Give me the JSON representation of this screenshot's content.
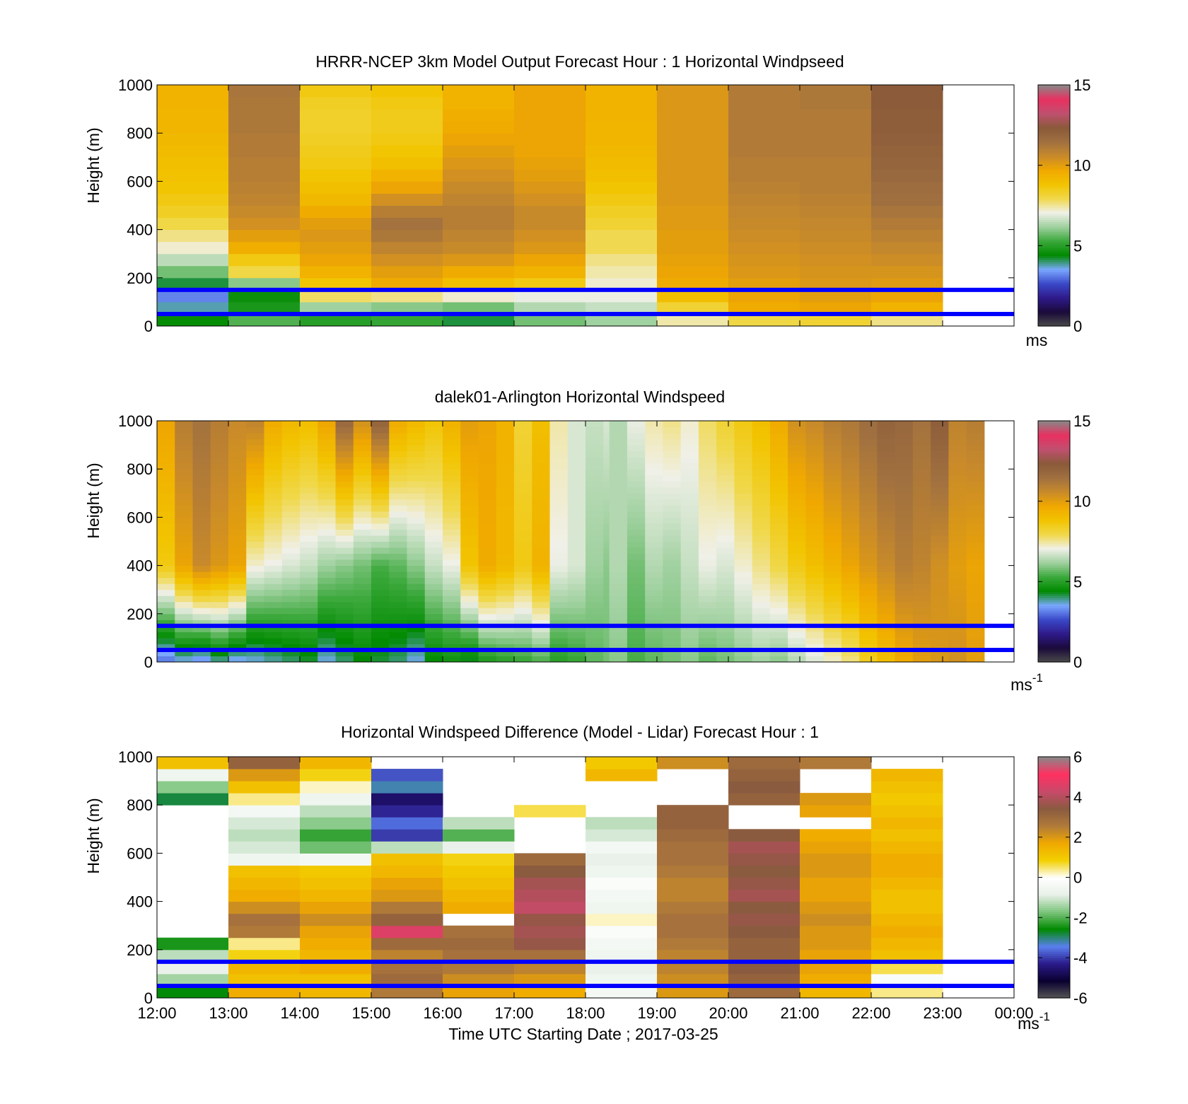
{
  "colors": {
    "speed_scale": [
      "#4b4b4b",
      "#1a0a3a",
      "#2f1a8a",
      "#3a48c8",
      "#7aa8ff",
      "#008a00",
      "#3aa83a",
      "#9ed09e",
      "#f0f0e8",
      "#f0d84a",
      "#f2c400",
      "#f0a800",
      "#c88a2a",
      "#a07040",
      "#8a5a3a",
      "#c05070",
      "#e83060",
      "#888888"
    ],
    "diff_scale": [
      "#555555",
      "#0a0030",
      "#2a1a8a",
      "#5a80f0",
      "#008a00",
      "#7cc47c",
      "#e8f0e8",
      "#ffffff",
      "#f2d000",
      "#f0a800",
      "#b07a3a",
      "#8a5a40",
      "#c84a6a",
      "#ff3060",
      "#888888"
    ],
    "reference_line": "#0000ff"
  },
  "chart_data": [
    {
      "type": "heatmap",
      "title": "HRRR-NCEP 3km Model Output   Forecast Hour : 1 Horizontal Windpseed",
      "ylabel": "Height (m)",
      "xlabel": "",
      "ylim": [
        0,
        1000
      ],
      "yticks": [
        "0",
        "200",
        "400",
        "600",
        "800",
        "1000"
      ],
      "colorbar": {
        "min": 0,
        "max": 15,
        "ticks": [
          "0",
          "5",
          "10",
          "15"
        ],
        "unit": "ms",
        "unit_sup": ""
      },
      "reference_lines_m": [
        50,
        150
      ],
      "x_hours": [
        12,
        13,
        14,
        15,
        16,
        17,
        18,
        19,
        20,
        21,
        22
      ],
      "heights_m": [
        25,
        75,
        125,
        175,
        225,
        275,
        325,
        375,
        425,
        475,
        525,
        575,
        625,
        675,
        725,
        775,
        825,
        875,
        925,
        975
      ],
      "values": [
        [
          4.5,
          3.8,
          3.2,
          4.2,
          5.8,
          6.5,
          7.2,
          7.6,
          8.0,
          8.4,
          8.6,
          8.8,
          8.9,
          9.0,
          9.1,
          9.2,
          9.3,
          9.3,
          9.4,
          9.4
        ],
        [
          5.5,
          4.8,
          4.6,
          6.0,
          8.0,
          8.6,
          9.5,
          10.0,
          10.4,
          10.6,
          10.8,
          10.9,
          11.0,
          11.0,
          11.1,
          11.1,
          11.2,
          11.2,
          11.2,
          11.3
        ],
        [
          5.0,
          6.2,
          7.8,
          8.8,
          9.4,
          9.8,
          10.0,
          10.2,
          10.0,
          9.6,
          9.2,
          9.0,
          8.8,
          8.6,
          8.5,
          8.4,
          8.3,
          8.3,
          8.4,
          8.6
        ],
        [
          5.2,
          6.0,
          7.6,
          9.6,
          10.0,
          10.4,
          10.8,
          11.2,
          11.4,
          11.0,
          10.4,
          9.8,
          9.4,
          9.0,
          8.8,
          8.6,
          8.5,
          8.5,
          8.6,
          8.8
        ],
        [
          4.2,
          5.8,
          7.2,
          9.0,
          9.6,
          10.2,
          10.6,
          10.8,
          11.0,
          11.0,
          10.8,
          10.6,
          10.4,
          10.2,
          10.0,
          9.8,
          9.6,
          9.5,
          9.4,
          9.4
        ],
        [
          5.8,
          6.4,
          7.0,
          8.6,
          9.4,
          9.8,
          10.2,
          10.4,
          10.6,
          10.6,
          10.4,
          10.2,
          10.0,
          9.9,
          9.8,
          9.8,
          9.8,
          9.8,
          9.8,
          9.8
        ],
        [
          6.2,
          6.6,
          7.0,
          7.2,
          7.4,
          7.6,
          7.9,
          7.9,
          8.2,
          8.4,
          8.6,
          8.8,
          9.0,
          9.1,
          9.2,
          9.3,
          9.3,
          9.4,
          9.4,
          9.4
        ],
        [
          7.4,
          8.2,
          9.0,
          9.6,
          9.8,
          9.9,
          10.0,
          10.0,
          10.1,
          10.1,
          10.2,
          10.2,
          10.2,
          10.2,
          10.2,
          10.2,
          10.2,
          10.2,
          10.2,
          10.2
        ],
        [
          8.0,
          9.6,
          9.8,
          10.0,
          10.2,
          10.3,
          10.4,
          10.5,
          10.6,
          10.7,
          10.8,
          10.9,
          11.0,
          11.0,
          11.1,
          11.1,
          11.1,
          11.1,
          11.1,
          11.1
        ],
        [
          8.2,
          9.8,
          10.0,
          10.2,
          10.3,
          10.4,
          10.5,
          10.6,
          10.7,
          10.8,
          10.9,
          11.0,
          11.0,
          11.0,
          11.1,
          11.1,
          11.1,
          11.1,
          11.2,
          11.2
        ],
        [
          7.6,
          9.4,
          9.8,
          10.1,
          10.3,
          10.5,
          10.7,
          10.9,
          11.1,
          11.3,
          11.5,
          11.6,
          11.8,
          11.9,
          12.0,
          12.1,
          12.2,
          12.2,
          12.3,
          12.3
        ]
      ]
    },
    {
      "type": "heatmap",
      "title": "dalek01-Arlington  Horizontal Windspeed",
      "ylabel": "Height (m)",
      "xlabel": "",
      "ylim": [
        0,
        1000
      ],
      "yticks": [
        "0",
        "200",
        "400",
        "600",
        "800",
        "1000"
      ],
      "colorbar": {
        "min": 0,
        "max": 15,
        "ticks": [
          "0",
          "5",
          "10",
          "15"
        ],
        "unit": "ms",
        "unit_sup": "-1"
      },
      "reference_lines_m": [
        50,
        150
      ],
      "profile_minutes": [
        0,
        15,
        30,
        45,
        60,
        75,
        90,
        105,
        120,
        135,
        150,
        165,
        180,
        195,
        210,
        225,
        240,
        255,
        270,
        285,
        300,
        315,
        330,
        345,
        360,
        375,
        380,
        395,
        410,
        425,
        440,
        455,
        470,
        485,
        500,
        515,
        530,
        545,
        560,
        575,
        590,
        605,
        620,
        635,
        650,
        665,
        680
      ],
      "profile_low_speed_ms": [
        3.0,
        3.5,
        3.2,
        3.8,
        3.4,
        3.6,
        3.8,
        4.0,
        4.2,
        3.6,
        4.0,
        4.4,
        4.2,
        4.0,
        3.6,
        4.4,
        4.6,
        4.2,
        4.8,
        5.0,
        5.2,
        5.4,
        5.0,
        5.2,
        5.6,
        5.8,
        6.0,
        5.4,
        5.6,
        5.8,
        6.0,
        5.6,
        5.8,
        6.0,
        6.2,
        6.0,
        6.4,
        6.8,
        7.2,
        7.6,
        8.4,
        9.0,
        9.6,
        10.0,
        10.2,
        10.4,
        10.0
      ],
      "profile_mid_speed_ms": [
        8.6,
        9.8,
        10.6,
        10.2,
        9.8,
        7.2,
        7.0,
        6.8,
        6.6,
        6.2,
        6.0,
        5.8,
        5.4,
        5.6,
        6.0,
        6.6,
        7.0,
        8.8,
        9.6,
        9.2,
        8.6,
        9.4,
        7.0,
        6.8,
        6.2,
        6.0,
        6.4,
        5.8,
        6.4,
        6.2,
        6.6,
        7.0,
        6.8,
        7.2,
        7.6,
        8.0,
        8.6,
        9.0,
        9.4,
        9.8,
        10.2,
        10.6,
        11.0,
        10.8,
        10.4,
        10.0,
        9.8
      ],
      "profile_high_speed_ms": [
        9.8,
        11.0,
        11.4,
        11.0,
        10.6,
        10.8,
        9.6,
        9.2,
        9.0,
        9.8,
        11.8,
        10.4,
        12.0,
        9.6,
        9.2,
        8.8,
        9.4,
        10.0,
        9.8,
        9.4,
        8.2,
        9.0,
        7.4,
        6.8,
        6.6,
        6.8,
        6.4,
        7.0,
        7.4,
        7.6,
        7.2,
        7.8,
        8.2,
        8.6,
        9.0,
        9.6,
        10.4,
        10.6,
        11.0,
        11.2,
        11.6,
        12.0,
        11.8,
        11.4,
        12.2,
        10.8,
        11.0
      ]
    },
    {
      "type": "heatmap",
      "title": "Horizontal Windspeed Difference (Model - Lidar) Forecast Hour : 1",
      "ylabel": "Height (m)",
      "xlabel": "Time UTC  Starting Date ; 2017-03-25",
      "ylim": [
        0,
        1000
      ],
      "yticks": [
        "0",
        "200",
        "400",
        "600",
        "800",
        "1000"
      ],
      "xticks": [
        "12:00",
        "13:00",
        "14:00",
        "15:00",
        "16:00",
        "17:00",
        "18:00",
        "19:00",
        "20:00",
        "21:00",
        "22:00",
        "23:00",
        "00:00"
      ],
      "colorbar": {
        "min": -6,
        "max": 6,
        "ticks": [
          "-6",
          "-4",
          "-2",
          "0",
          "2",
          "4",
          "6"
        ],
        "unit": "ms",
        "unit_sup": "-1"
      },
      "reference_lines_m": [
        50,
        150
      ],
      "x_hours": [
        12,
        13,
        14,
        15,
        16,
        17,
        18,
        19,
        20,
        21,
        22
      ],
      "heights_m": [
        25,
        75,
        125,
        175,
        225,
        275,
        325,
        375,
        425,
        475,
        525,
        575,
        625,
        675,
        725,
        775,
        825,
        875,
        925,
        975
      ],
      "values": [
        [
          -2.6,
          -1.4,
          -0.8,
          -1.2,
          -2.4,
          null,
          null,
          null,
          null,
          null,
          null,
          null,
          null,
          null,
          null,
          null,
          -2.8,
          -1.6,
          -0.6,
          1.2
        ],
        [
          1.6,
          1.2,
          1.4,
          0.8,
          0.4,
          2.6,
          2.8,
          2.2,
          1.6,
          1.4,
          1.2,
          -0.6,
          -1.0,
          -1.2,
          -1.0,
          -0.4,
          0.4,
          1.2,
          2.0,
          3.2
        ],
        [
          1.4,
          1.2,
          1.6,
          1.4,
          1.6,
          1.8,
          2.2,
          1.8,
          1.4,
          1.2,
          1.0,
          -0.4,
          -1.8,
          -2.2,
          -1.6,
          -1.2,
          -0.6,
          0.2,
          0.8,
          1.4
        ],
        [
          2.6,
          3.0,
          2.8,
          2.4,
          3.0,
          4.6,
          3.2,
          2.6,
          2.0,
          1.8,
          1.4,
          1.2,
          -1.2,
          -4.0,
          -3.6,
          -4.2,
          -4.6,
          -3.2,
          -3.8,
          null
        ],
        [
          1.8,
          2.2,
          2.6,
          2.8,
          3.0,
          2.8,
          null,
          1.6,
          1.4,
          1.2,
          1.0,
          0.8,
          -0.8,
          -2.0,
          -1.2,
          null,
          null,
          null,
          null,
          null
        ],
        [
          1.6,
          2.0,
          2.4,
          2.8,
          3.6,
          3.8,
          3.6,
          4.2,
          4.0,
          3.8,
          3.4,
          3.0,
          null,
          null,
          null,
          0.6,
          null,
          null,
          null,
          null
        ],
        [
          -0.4,
          -0.6,
          -0.8,
          -0.6,
          -0.4,
          -0.2,
          0.2,
          -0.6,
          -0.4,
          -0.2,
          -0.6,
          -0.8,
          -0.4,
          -1.0,
          -1.2,
          null,
          null,
          null,
          1.4,
          1.0
        ],
        [
          2.0,
          2.2,
          2.4,
          2.4,
          2.6,
          2.8,
          2.8,
          2.6,
          2.4,
          2.4,
          2.6,
          2.8,
          2.8,
          3.0,
          3.2,
          3.2,
          null,
          null,
          null,
          2.2
        ],
        [
          3.0,
          3.2,
          3.4,
          3.2,
          3.2,
          3.4,
          3.6,
          3.4,
          3.8,
          3.6,
          3.4,
          3.6,
          3.8,
          3.4,
          null,
          null,
          3.2,
          3.4,
          3.2,
          3.0
        ],
        [
          1.4,
          1.6,
          1.8,
          1.8,
          2.0,
          2.0,
          2.2,
          2.0,
          1.8,
          1.8,
          2.0,
          2.0,
          1.8,
          1.6,
          null,
          1.8,
          2.0,
          null,
          null,
          2.6
        ],
        [
          0.4,
          -0.2,
          0.6,
          1.2,
          1.4,
          1.6,
          1.4,
          1.2,
          1.2,
          1.4,
          1.6,
          1.6,
          1.4,
          1.2,
          1.4,
          1.2,
          1.0,
          1.2,
          1.4,
          null
        ]
      ]
    }
  ]
}
